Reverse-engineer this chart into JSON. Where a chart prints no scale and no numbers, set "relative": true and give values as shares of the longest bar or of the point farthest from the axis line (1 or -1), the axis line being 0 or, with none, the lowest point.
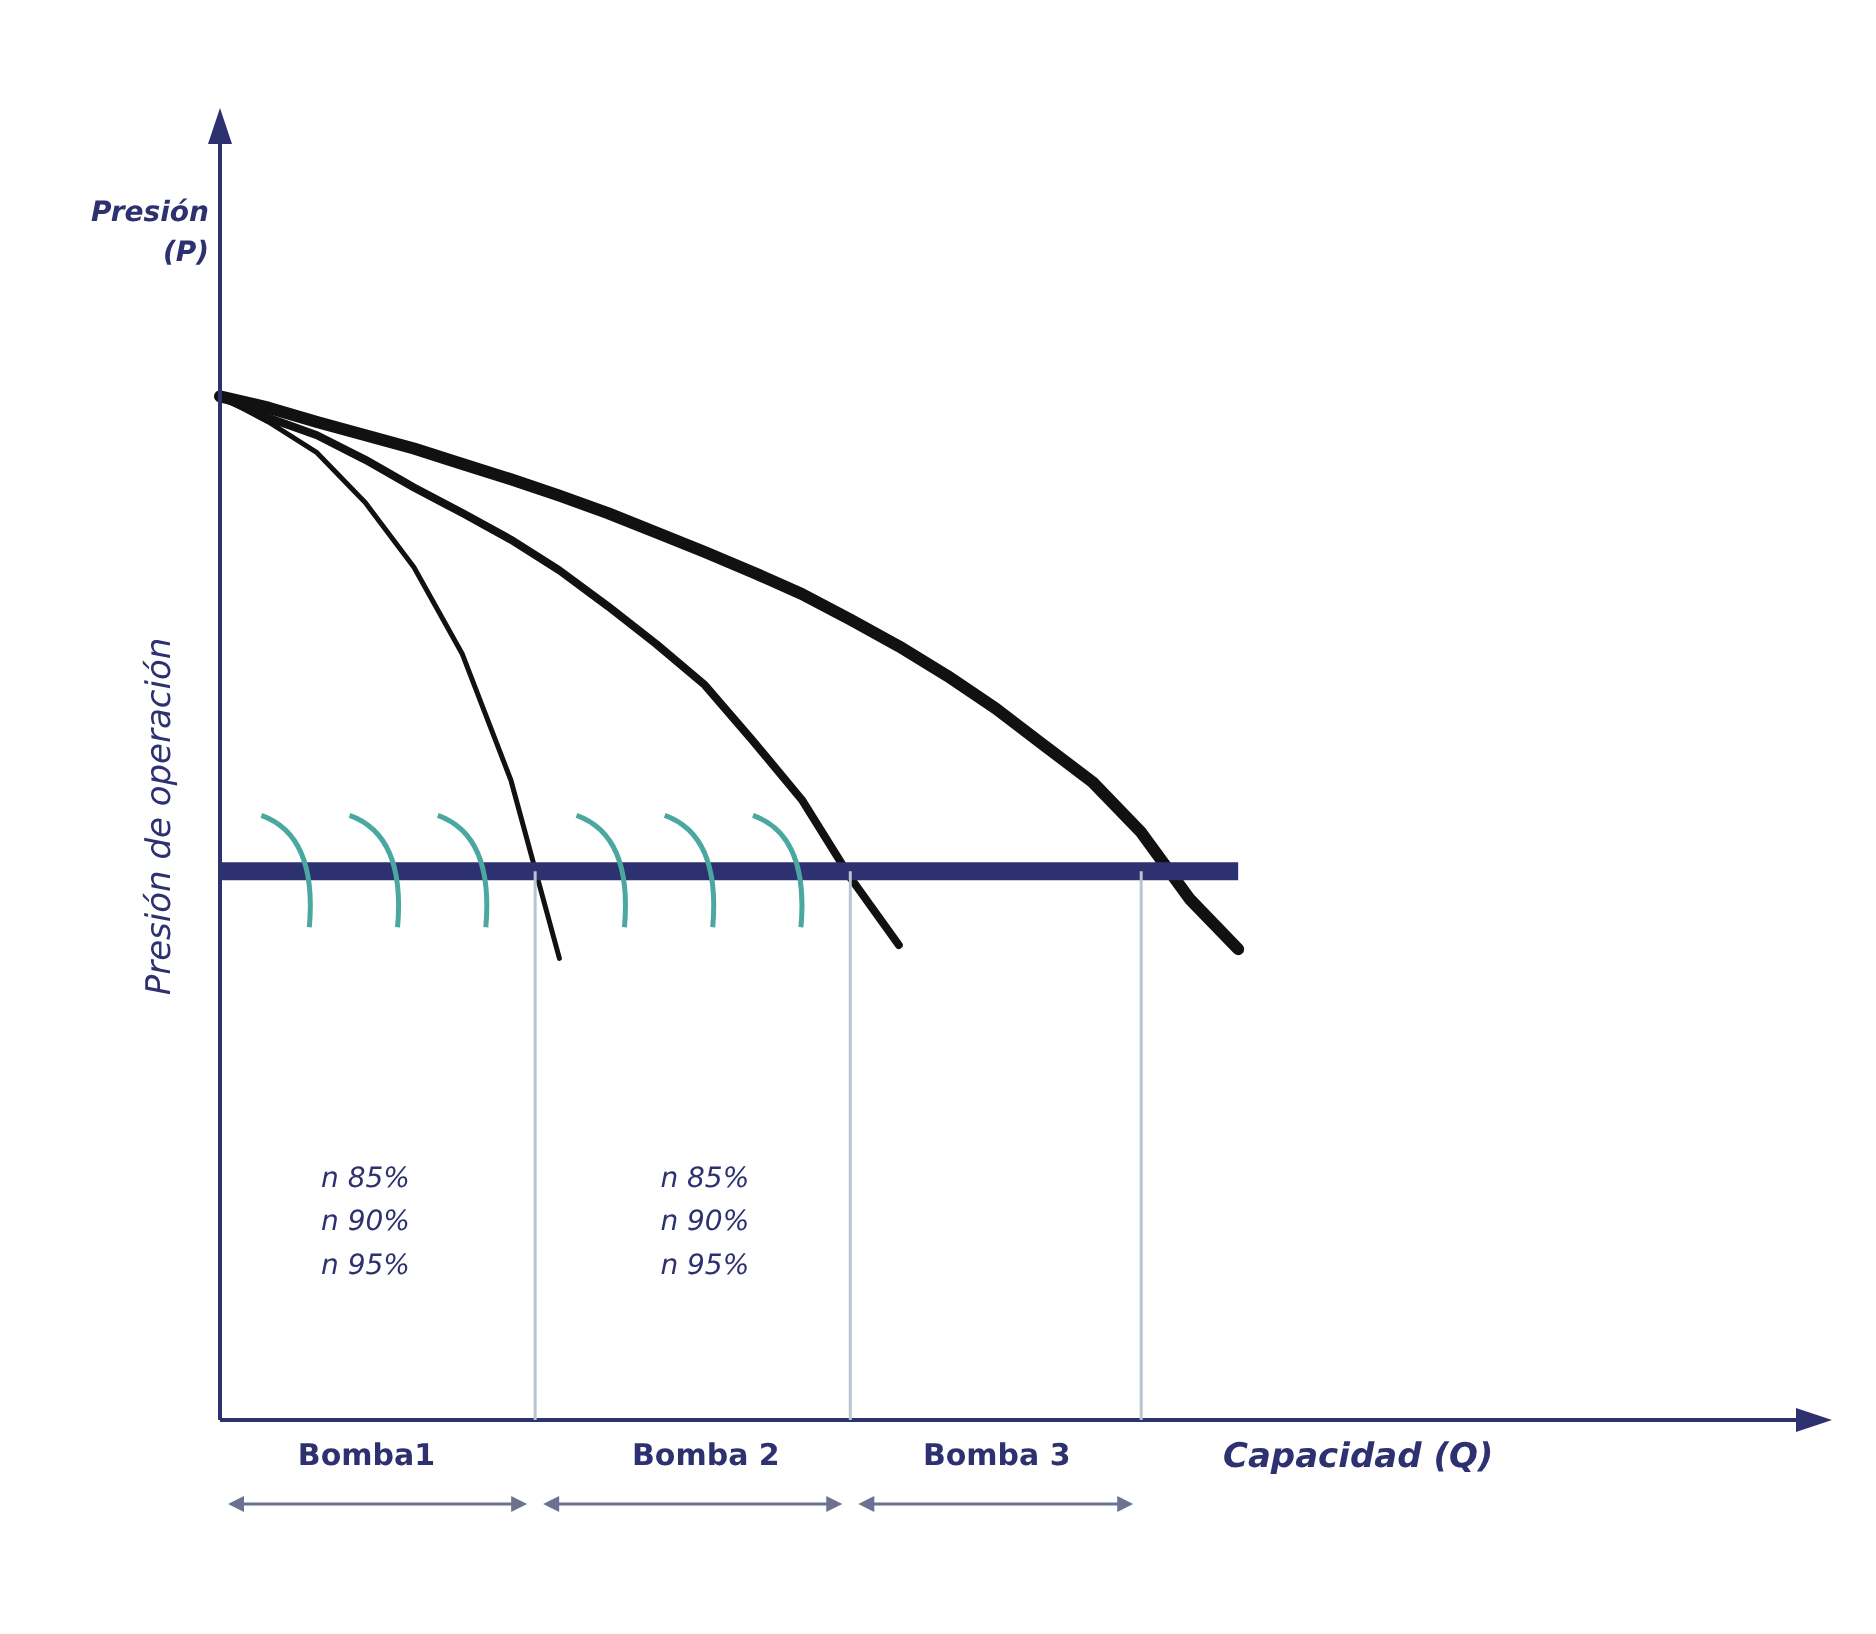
{
  "chart_data": {
    "type": "line",
    "relative": true,
    "xlabel": "Capacidad (Q)",
    "ylabel": "Presión\n(P)",
    "categories": [
      null,
      null,
      null,
      "Bomba1",
      null,
      null,
      null,
      null,
      null,
      null,
      "Bomba 2",
      null,
      null,
      null,
      null,
      null,
      "Bomba 3",
      null,
      null,
      null,
      null,
      null,
      null,
      null,
      null,
      null,
      null,
      null,
      null,
      null,
      null,
      null,
      null,
      null
    ],
    "series": [
      {
        "color": "#111111",
        "values": [
          1,
          0.975,
          0.945,
          0.896,
          0.833,
          0.748,
          0.625,
          0.451,
          null,
          null,
          null,
          null,
          null,
          null,
          null,
          null,
          null,
          null,
          null,
          null,
          null,
          null,
          null,
          null,
          null,
          null,
          null,
          null,
          null,
          null,
          null,
          null,
          null,
          null
        ]
      },
      {
        "color": "#111111",
        "values": [
          1,
          0.979,
          0.962,
          0.938,
          0.911,
          0.886,
          0.86,
          0.83,
          0.795,
          0.758,
          0.718,
          0.663,
          0.606,
          0.53,
          0.464,
          null,
          null,
          null,
          null,
          null,
          null,
          null,
          null,
          null,
          null,
          null,
          null,
          null,
          null,
          null,
          null,
          null,
          null,
          null
        ]
      },
      {
        "color": "#111111",
        "values": [
          1,
          0.989,
          0.975,
          0.962,
          0.949,
          0.934,
          0.919,
          0.903,
          0.886,
          0.867,
          0.848,
          0.828,
          0.807,
          0.782,
          0.756,
          0.727,
          0.695,
          0.659,
          0.623,
          0.574,
          0.509,
          0.46,
          null,
          null,
          null,
          null,
          null,
          null,
          null,
          null,
          null,
          null,
          null,
          null
        ]
      }
    ],
    "ref_lines": [
      {
        "axis": "y",
        "value": 0.536,
        "label": "Presión de operación",
        "color": "#2e3170"
      }
    ],
    "annotations": [
      "n 85%",
      "n 90%",
      "n 95%",
      "n 85%",
      "n 90%",
      "n 95%"
    ]
  }
}
